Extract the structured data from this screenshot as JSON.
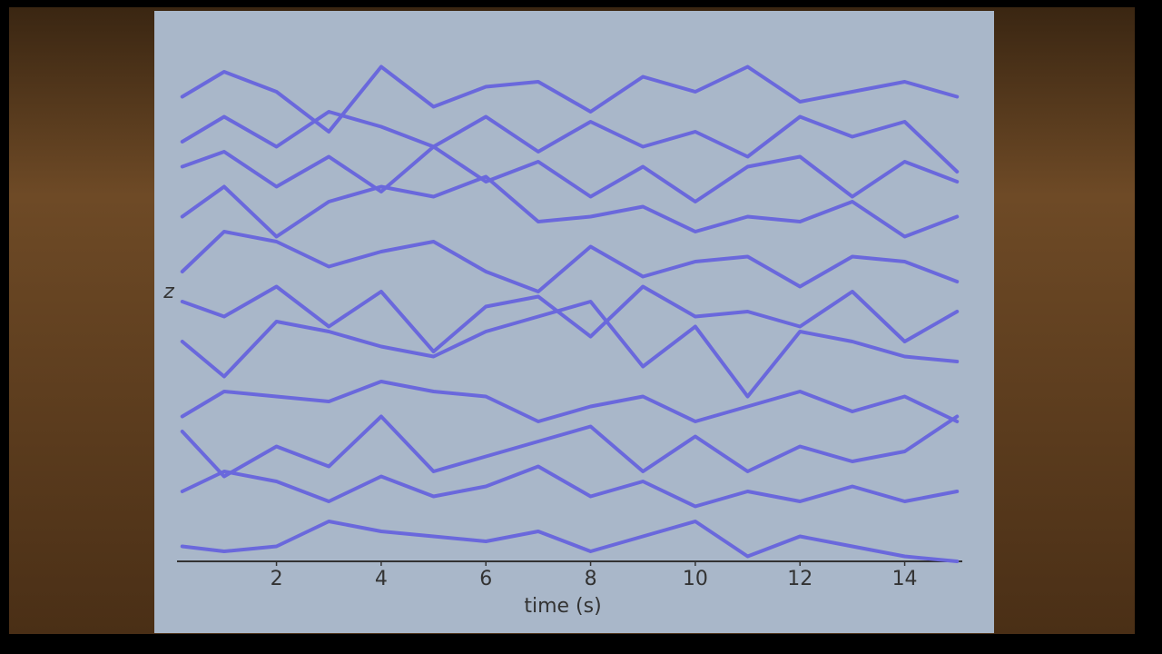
{
  "chart_data": {
    "type": "line",
    "x_label": "time (s)",
    "y_label": "z",
    "x": [
      0.2,
      1,
      2,
      3,
      4,
      5,
      6,
      7,
      8,
      9,
      10,
      11,
      12,
      13,
      14,
      15
    ],
    "xlim": [
      0.1,
      15.1
    ],
    "ylim": [
      0,
      10
    ],
    "xticks": [
      2,
      4,
      6,
      8,
      10,
      12,
      14
    ],
    "series": [
      {
        "color": "#6a68dc",
        "values": [
          9.3,
          9.8,
          9.4,
          8.6,
          9.9,
          9.1,
          9.5,
          9.6,
          9.0,
          9.7,
          9.4,
          9.9,
          9.2,
          9.4,
          9.6,
          9.3
        ]
      },
      {
        "color": "#6a68dc",
        "values": [
          8.4,
          8.9,
          8.3,
          9.0,
          8.7,
          8.3,
          8.9,
          8.2,
          8.8,
          8.3,
          8.6,
          8.1,
          8.9,
          8.5,
          8.8,
          7.8
        ]
      },
      {
        "color": "#6a68dc",
        "values": [
          7.9,
          8.2,
          7.5,
          8.1,
          7.4,
          8.3,
          7.6,
          8.0,
          7.3,
          7.9,
          7.2,
          7.9,
          8.1,
          7.3,
          8.0,
          7.6
        ]
      },
      {
        "color": "#6a68dc",
        "values": [
          6.9,
          7.5,
          6.5,
          7.2,
          7.5,
          7.3,
          7.7,
          6.8,
          6.9,
          7.1,
          6.6,
          6.9,
          6.8,
          7.2,
          6.5,
          6.9
        ]
      },
      {
        "color": "#6a68dc",
        "values": [
          5.8,
          6.6,
          6.4,
          5.9,
          6.2,
          6.4,
          5.8,
          5.4,
          6.3,
          5.7,
          6.0,
          6.1,
          5.5,
          6.1,
          6.0,
          5.6
        ]
      },
      {
        "color": "#6a68dc",
        "values": [
          5.2,
          4.9,
          5.5,
          4.7,
          5.4,
          4.2,
          5.1,
          5.3,
          4.5,
          5.5,
          4.9,
          5.0,
          4.7,
          5.4,
          4.4,
          5.0
        ]
      },
      {
        "color": "#6a68dc",
        "values": [
          4.4,
          3.7,
          4.8,
          4.6,
          4.3,
          4.1,
          4.6,
          4.9,
          5.2,
          3.9,
          4.7,
          3.3,
          4.6,
          4.4,
          4.1,
          4.0
        ]
      },
      {
        "color": "#6a68dc",
        "values": [
          2.9,
          3.4,
          3.3,
          3.2,
          3.6,
          3.4,
          3.3,
          2.8,
          3.1,
          3.3,
          2.8,
          3.1,
          3.4,
          3.0,
          3.3,
          2.8
        ]
      },
      {
        "color": "#6a68dc",
        "values": [
          2.6,
          1.7,
          2.3,
          1.9,
          2.9,
          1.8,
          2.1,
          2.4,
          2.7,
          1.8,
          2.5,
          1.8,
          2.3,
          2.0,
          2.2,
          2.9
        ]
      },
      {
        "color": "#6a68dc",
        "values": [
          1.4,
          1.8,
          1.6,
          1.2,
          1.7,
          1.3,
          1.5,
          1.9,
          1.3,
          1.6,
          1.1,
          1.4,
          1.2,
          1.5,
          1.2,
          1.4
        ]
      },
      {
        "color": "#6a68dc",
        "values": [
          0.3,
          0.2,
          0.3,
          0.8,
          0.6,
          0.5,
          0.4,
          0.6,
          0.2,
          0.5,
          0.8,
          0.1,
          0.5,
          0.3,
          0.1,
          0.0
        ]
      }
    ]
  }
}
